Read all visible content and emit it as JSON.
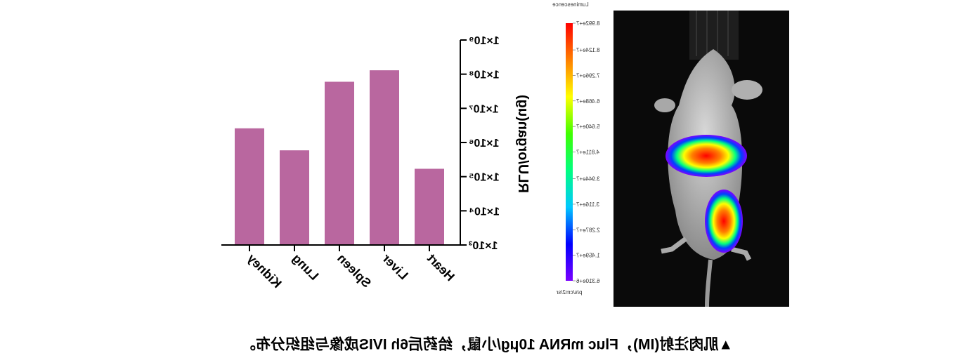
{
  "chart_data": [
    {
      "type": "bar",
      "ylabel": "RLU/organ(ug)",
      "categories": [
        "Heart",
        "Liver",
        "Spleen",
        "Lung",
        "Kidney"
      ],
      "values": [
        170000,
        130000000,
        60000000,
        590000,
        2600000
      ],
      "color": "#b9679f",
      "log_scale": true,
      "ylim": [
        1000,
        1000000000
      ],
      "yticks": [
        {
          "value": 1000,
          "label": "1×10³"
        },
        {
          "value": 10000,
          "label": "1×10⁴"
        },
        {
          "value": 100000,
          "label": "1×10⁵"
        },
        {
          "value": 1000000,
          "label": "1×10⁶"
        },
        {
          "value": 10000000,
          "label": "1×10⁷"
        },
        {
          "value": 100000000,
          "label": "1×10⁸"
        },
        {
          "value": 1000000000,
          "label": "1×10⁹"
        }
      ]
    },
    {
      "type": "colorbar",
      "title": "Luminescence",
      "unit": "p/s/cm2/sr",
      "colors": [
        "#7a00ff",
        "#0000ff",
        "#00c8ff",
        "#00ff80",
        "#40ff00",
        "#ffff00",
        "#ff8000",
        "#ff0000"
      ],
      "ylim": [
        6310000,
        89920000
      ],
      "yticks": [
        {
          "value": 89920000,
          "label": "8.992e+7"
        },
        {
          "value": 81240000,
          "label": "8.124e+7"
        },
        {
          "value": 72960000,
          "label": "7.296e+7"
        },
        {
          "value": 64680000,
          "label": "6.468e+7"
        },
        {
          "value": 56400000,
          "label": "5.640e+7"
        },
        {
          "value": 48110000,
          "label": "4.811e+7"
        },
        {
          "value": 39440000,
          "label": "3.944e+7"
        },
        {
          "value": 31160000,
          "label": "3.116e+7"
        },
        {
          "value": 22870000,
          "label": "2.287e+7"
        },
        {
          "value": 14590000,
          "label": "1.459e+7"
        },
        {
          "value": 6310000,
          "label": "6.310e+6"
        }
      ]
    }
  ],
  "caption": "▲肌肉注射(IM)，Fluc mRNA 10μg/小鼠，给药后6h IVIS成像与组织分布。"
}
